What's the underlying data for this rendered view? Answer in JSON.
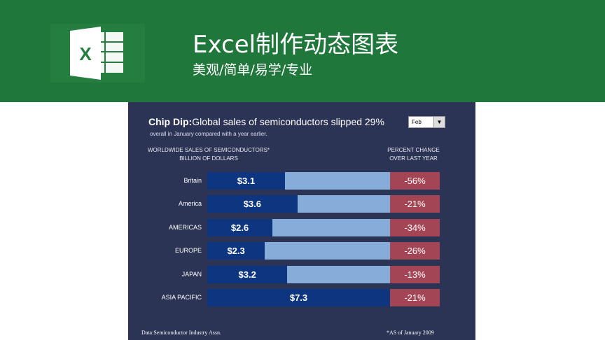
{
  "slide": {
    "title": "Excel制作动态图表",
    "subtitle": "美观/简单/易学/专业",
    "logo_icon": "excel-logo"
  },
  "chart_data": {
    "type": "bar",
    "title_bold": "Chip Dip:",
    "title": "Global sales of semiconductors slipped 29%",
    "subtitle": "overall in January compared with a year earlier.",
    "left_header": [
      "WORLDWIDE SALES OF SEMICONDUCTORS*",
      "BILLION OF DOLLARS"
    ],
    "right_header": [
      "PERCENT CHANGE",
      "OVER LAST YEAR"
    ],
    "month_select": "Feb",
    "categories": [
      "Britain",
      "America",
      "AMERICAS",
      "EUROPE",
      "JAPAN",
      "ASIA PACIFIC"
    ],
    "values": [
      3.1,
      3.6,
      2.6,
      2.3,
      3.2,
      7.3
    ],
    "value_labels": [
      "$3.1",
      "$3.6",
      "$2.6",
      "$2.3",
      "$3.2",
      "$7.3"
    ],
    "pct_change": [
      "-56%",
      "-21%",
      "-34%",
      "-26%",
      "-13%",
      "-21%"
    ],
    "xlim": [
      0,
      7.3
    ],
    "source": "Data:Semiconductor Industry Assn.",
    "note": "*AS of January 2009",
    "colors": {
      "bar": "#0e3680",
      "bar_bg": "#86acd9",
      "pct": "#a44556",
      "panel": "#2b3455",
      "header": "#1f773b"
    }
  }
}
